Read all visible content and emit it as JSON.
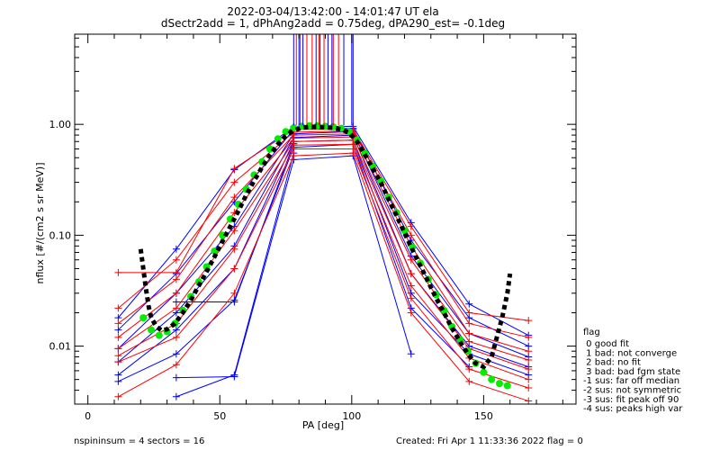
{
  "header": {
    "title_line1": "2022-03-04/13:42:00 - 14:01:47 UT ela",
    "title_line2": "dSectr2add = 1, dPhAng2add = 0.75deg, dPA290_est=  -0.1deg"
  },
  "footer": {
    "left": "nspininsum =  4   sectors = 16",
    "right": "Created: Fri Apr  1 11:33:36 2022   flag = 0"
  },
  "legend": {
    "title": "flag",
    "items": [
      " 0 good fit",
      " 1 bad: not converge",
      " 2 bad: no fit",
      " 3 bad: bad fgm state",
      "-1 sus: far off median",
      "-2 sus: not symmetric",
      "-3 sus: fit peak off 90",
      "-4 sus: peaks high var"
    ]
  },
  "chart_data": {
    "type": "line",
    "title": "2022-03-04/13:42:00 - 14:01:47 UT ela",
    "xlabel": "PA [deg]",
    "ylabel": "nflux [#/(cm2 s sr MeV)]",
    "xlim": [
      -5,
      185
    ],
    "ylim": [
      0.003,
      6.5
    ],
    "yscale": "log",
    "x_ticks": [
      "0",
      "50",
      "100",
      "150"
    ],
    "y_ticks": [
      "0.01",
      "0.10",
      "1.00"
    ],
    "colors": {
      "blue": "#0000ff",
      "red": "#ff0000",
      "green": "#00ee00",
      "black": "#000000"
    },
    "series": [
      {
        "color": "#0000ff",
        "x": [
          11.5,
          33.5,
          55.5,
          78,
          100.5,
          122.5,
          144.5,
          167
        ],
        "y": [
          0.018,
          0.075,
          0.39,
          0.95,
          0.96,
          0.13,
          0.024,
          0.0125
        ]
      },
      {
        "color": "#0000ff",
        "x": [
          11.5,
          33.5,
          55.5,
          78,
          100.5,
          122.5,
          144.5,
          167
        ],
        "y": [
          0.014,
          0.045,
          0.2,
          0.9,
          0.92,
          0.09,
          0.018,
          0.01
        ]
      },
      {
        "color": "#0000ff",
        "x": [
          11.5,
          33.5,
          55.5,
          78,
          100.5,
          122.5,
          144.5,
          167
        ],
        "y": [
          0.0095,
          0.03,
          0.12,
          0.82,
          0.86,
          0.065,
          0.013,
          0.008
        ]
      },
      {
        "color": "#0000ff",
        "x": [
          11.5,
          33.5,
          55.5,
          78,
          100.5,
          122.5,
          144.5,
          167
        ],
        "y": [
          0.0072,
          0.02,
          0.08,
          0.76,
          0.8,
          0.045,
          0.01,
          0.0065
        ]
      },
      {
        "color": "#0000ff",
        "x": [
          11.5,
          33.5,
          55.5,
          78,
          100.5,
          122.5,
          144.5,
          167
        ],
        "y": [
          0.0055,
          0.014,
          0.05,
          0.7,
          0.72,
          0.03,
          0.0085,
          0.0055
        ]
      },
      {
        "color": "#0000ff",
        "x": [
          11.5,
          33.5,
          55.5,
          78,
          100.5,
          122.5,
          144.5
        ],
        "y": [
          0.0048,
          0.0085,
          0.026,
          0.62,
          0.66,
          0.022,
          0.0065
        ]
      },
      {
        "color": "#0000ff",
        "x": [
          33.5,
          55.5,
          78,
          100.5,
          122.5
        ],
        "y": [
          0.0052,
          0.0053,
          0.48,
          0.52,
          0.0085
        ]
      },
      {
        "color": "#0000ff",
        "x": [
          33.5,
          55.5,
          78
        ],
        "y": [
          0.0035,
          0.0055,
          0.55
        ]
      },
      {
        "color": "#0000ff",
        "x": [
          33.5,
          55.5,
          78
        ],
        "y": [
          0.025,
          0.025,
          0.67
        ]
      },
      {
        "color": "#ff0000",
        "x": [
          11.5,
          33.5,
          55.5,
          78,
          100.5,
          122.5,
          144.5,
          167
        ],
        "y": [
          0.046,
          0.046,
          0.4,
          0.9,
          0.9,
          0.12,
          0.02,
          0.017
        ]
      },
      {
        "color": "#ff0000",
        "x": [
          11.5,
          33.5,
          55.5,
          78,
          100.5,
          122.5,
          144.5,
          167
        ],
        "y": [
          0.022,
          0.06,
          0.3,
          0.85,
          0.87,
          0.1,
          0.016,
          0.012
        ]
      },
      {
        "color": "#ff0000",
        "x": [
          11.5,
          33.5,
          55.5,
          78,
          100.5,
          122.5,
          144.5,
          167
        ],
        "y": [
          0.016,
          0.04,
          0.22,
          0.8,
          0.82,
          0.08,
          0.013,
          0.009
        ]
      },
      {
        "color": "#ff0000",
        "x": [
          11.5,
          33.5,
          55.5,
          78,
          100.5,
          122.5,
          144.5,
          167
        ],
        "y": [
          0.012,
          0.03,
          0.16,
          0.75,
          0.77,
          0.06,
          0.011,
          0.0075
        ]
      },
      {
        "color": "#ff0000",
        "x": [
          11.5,
          33.5,
          55.5,
          78,
          100.5,
          122.5,
          144.5,
          167
        ],
        "y": [
          0.0095,
          0.022,
          0.11,
          0.7,
          0.72,
          0.045,
          0.0095,
          0.0062
        ]
      },
      {
        "color": "#ff0000",
        "x": [
          11.5,
          33.5,
          55.5,
          78,
          100.5,
          122.5,
          144.5,
          167
        ],
        "y": [
          0.0082,
          0.016,
          0.075,
          0.65,
          0.66,
          0.035,
          0.0078,
          0.005
        ]
      },
      {
        "color": "#ff0000",
        "x": [
          11.5,
          33.5,
          55.5,
          78,
          100.5,
          122.5,
          144.5,
          167
        ],
        "y": [
          0.0072,
          0.012,
          0.05,
          0.6,
          0.6,
          0.027,
          0.0062,
          0.0042
        ]
      },
      {
        "color": "#ff0000",
        "x": [
          11.5,
          33.5,
          55.5,
          78,
          100.5,
          122.5,
          144.5,
          167
        ],
        "y": [
          0.0035,
          0.0068,
          0.03,
          0.52,
          0.55,
          0.02,
          0.0048,
          0.0032
        ]
      },
      {
        "color": "#00ee00",
        "marker": "dot",
        "x": [
          21,
          24,
          27,
          30,
          33,
          36,
          39,
          42,
          45,
          48,
          51,
          54,
          57,
          60,
          63,
          66,
          69,
          72,
          75,
          78,
          81,
          84,
          87,
          90,
          93,
          96,
          99,
          102,
          105,
          108,
          111,
          114,
          117,
          120,
          123,
          126,
          129,
          132,
          135,
          138,
          141,
          144,
          147,
          150,
          153,
          156,
          159
        ],
        "y": [
          0.018,
          0.014,
          0.0125,
          0.0135,
          0.016,
          0.021,
          0.028,
          0.038,
          0.052,
          0.072,
          0.1,
          0.14,
          0.19,
          0.26,
          0.35,
          0.46,
          0.6,
          0.74,
          0.86,
          0.93,
          0.96,
          0.97,
          0.97,
          0.96,
          0.95,
          0.92,
          0.86,
          0.72,
          0.55,
          0.42,
          0.31,
          0.22,
          0.16,
          0.11,
          0.078,
          0.056,
          0.04,
          0.029,
          0.021,
          0.015,
          0.0115,
          0.009,
          0.007,
          0.0058,
          0.005,
          0.0046,
          0.0044
        ]
      },
      {
        "color": "#000000",
        "marker": "dash",
        "x": [
          20,
          21,
          22,
          23,
          24,
          26,
          28,
          30,
          33,
          36,
          39,
          42,
          45,
          48,
          51,
          54,
          57,
          60,
          63,
          66,
          69,
          72,
          75,
          78,
          81,
          84,
          87,
          90,
          93,
          96,
          99,
          102,
          105,
          108,
          111,
          114,
          117,
          120,
          123,
          126,
          129,
          132,
          135,
          138,
          141,
          144,
          147,
          150,
          153,
          155,
          157,
          159,
          160
        ],
        "y": [
          0.075,
          0.05,
          0.033,
          0.023,
          0.018,
          0.015,
          0.0138,
          0.0142,
          0.016,
          0.02,
          0.026,
          0.035,
          0.047,
          0.064,
          0.088,
          0.12,
          0.165,
          0.23,
          0.31,
          0.41,
          0.53,
          0.66,
          0.79,
          0.88,
          0.93,
          0.95,
          0.95,
          0.94,
          0.93,
          0.9,
          0.84,
          0.7,
          0.53,
          0.4,
          0.3,
          0.21,
          0.15,
          0.105,
          0.074,
          0.053,
          0.038,
          0.027,
          0.02,
          0.0145,
          0.011,
          0.0085,
          0.007,
          0.0065,
          0.008,
          0.012,
          0.018,
          0.03,
          0.045
        ]
      },
      {
        "color": "#0000ff",
        "marker": "vline",
        "x": [
          78,
          80,
          81.5,
          86.5,
          88,
          91,
          92.5,
          97,
          100,
          100.5
        ],
        "y": [
          0.98,
          0.98,
          0.98,
          0.98,
          0.98,
          0.98,
          0.98,
          0.98,
          0.98,
          0.98
        ]
      },
      {
        "color": "#ff0000",
        "marker": "vline",
        "x": [
          79,
          80.5,
          83,
          85,
          87.5,
          89.5,
          93,
          95
        ],
        "y": [
          0.98,
          0.98,
          0.98,
          0.98,
          0.98,
          0.98,
          0.98,
          0.98
        ]
      }
    ]
  }
}
